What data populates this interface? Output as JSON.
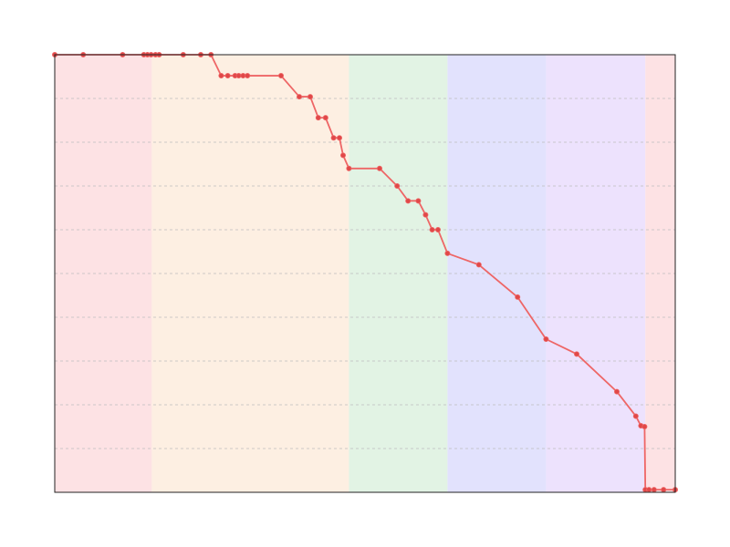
{
  "chart_data": {
    "type": "line",
    "title": "",
    "xlabel": "",
    "ylabel": "",
    "xlim": [
      0,
      85
    ],
    "ylim": [
      0,
      100
    ],
    "grid": {
      "y": true,
      "x": false,
      "style": "dashed",
      "y_step": 10
    },
    "bands": [
      {
        "from": 0,
        "to": 13.3,
        "color": "#fde2e4"
      },
      {
        "from": 13.3,
        "to": 40.3,
        "color": "#fdefe2"
      },
      {
        "from": 40.3,
        "to": 53.8,
        "color": "#e2f3e4"
      },
      {
        "from": 53.8,
        "to": 67.3,
        "color": "#e2e2fd"
      },
      {
        "from": 67.3,
        "to": 80.9,
        "color": "#ede2fd"
      },
      {
        "from": 80.9,
        "to": 85,
        "color": "#fde2e4"
      }
    ],
    "series": [
      {
        "color": "#ee6666",
        "marker_color": "#e04848",
        "points": [
          [
            0,
            100
          ],
          [
            3.9,
            100
          ],
          [
            9.3,
            100
          ],
          [
            12.2,
            100
          ],
          [
            12.7,
            100
          ],
          [
            13.2,
            100
          ],
          [
            13.8,
            100
          ],
          [
            14.3,
            100
          ],
          [
            17.6,
            100
          ],
          [
            20.0,
            100
          ],
          [
            21.4,
            100
          ],
          [
            22.8,
            95.2
          ],
          [
            23.7,
            95.2
          ],
          [
            24.7,
            95.2
          ],
          [
            25.2,
            95.2
          ],
          [
            25.8,
            95.2
          ],
          [
            26.4,
            95.2
          ],
          [
            31.0,
            95.2
          ],
          [
            33.5,
            90.4
          ],
          [
            35.0,
            90.4
          ],
          [
            36.1,
            85.6
          ],
          [
            37.1,
            85.6
          ],
          [
            38.2,
            81.0
          ],
          [
            39.0,
            81.0
          ],
          [
            39.5,
            77.0
          ],
          [
            40.3,
            74.0
          ],
          [
            44.5,
            74.0
          ],
          [
            46.9,
            70.0
          ],
          [
            48.4,
            66.6
          ],
          [
            49.8,
            66.6
          ],
          [
            50.8,
            63.4
          ],
          [
            51.7,
            60.0
          ],
          [
            52.5,
            60.0
          ],
          [
            53.8,
            54.6
          ],
          [
            58.1,
            52.0
          ],
          [
            63.4,
            44.6
          ],
          [
            67.3,
            35.0
          ],
          [
            71.5,
            31.6
          ],
          [
            77.0,
            23.0
          ],
          [
            79.6,
            17.4
          ],
          [
            80.3,
            15.2
          ],
          [
            80.8,
            15.0
          ],
          [
            80.9,
            0.6
          ],
          [
            81.4,
            0.6
          ],
          [
            82.1,
            0.6
          ],
          [
            83.4,
            0.6
          ],
          [
            85,
            0.6
          ]
        ]
      }
    ]
  }
}
